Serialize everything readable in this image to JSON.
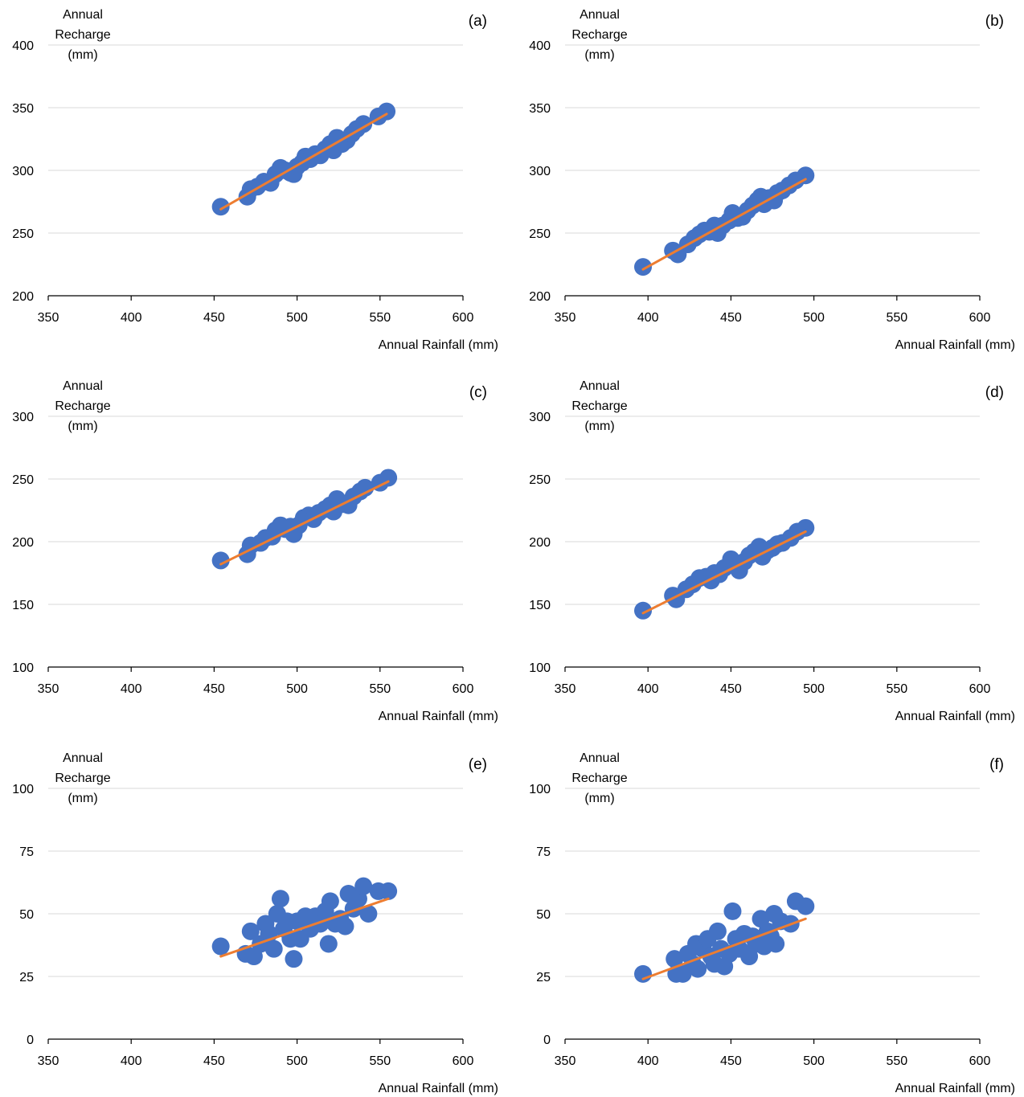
{
  "chart_data": [
    {
      "panel_label": "(a)",
      "type": "scatter",
      "xlabel": "Annual Rainfall (mm)",
      "ylabel_lines": [
        "Annual",
        "Recharge",
        "(mm)"
      ],
      "xlim": [
        350,
        600
      ],
      "ylim": [
        200,
        400
      ],
      "xticks": [
        350,
        400,
        450,
        500,
        550,
        600
      ],
      "yticks": [
        200,
        250,
        300,
        350,
        400
      ],
      "grid": true,
      "points": [
        [
          454,
          271
        ],
        [
          470,
          279
        ],
        [
          472,
          285
        ],
        [
          476,
          287
        ],
        [
          480,
          291
        ],
        [
          484,
          290
        ],
        [
          487,
          297
        ],
        [
          490,
          302
        ],
        [
          493,
          300
        ],
        [
          496,
          298
        ],
        [
          498,
          297
        ],
        [
          500,
          303
        ],
        [
          503,
          306
        ],
        [
          505,
          311
        ],
        [
          508,
          309
        ],
        [
          511,
          313
        ],
        [
          514,
          312
        ],
        [
          517,
          317
        ],
        [
          520,
          321
        ],
        [
          522,
          316
        ],
        [
          524,
          326
        ],
        [
          527,
          321
        ],
        [
          530,
          324
        ],
        [
          533,
          329
        ],
        [
          536,
          333
        ],
        [
          540,
          337
        ],
        [
          549,
          343
        ],
        [
          554,
          347
        ]
      ],
      "trend": [
        [
          454,
          269
        ],
        [
          554,
          345
        ]
      ]
    },
    {
      "panel_label": "(b)",
      "type": "scatter",
      "xlabel": "Annual Rainfall (mm)",
      "ylabel_lines": [
        "Annual",
        "Recharge",
        "(mm)"
      ],
      "xlim": [
        350,
        600
      ],
      "ylim": [
        200,
        400
      ],
      "xticks": [
        350,
        400,
        450,
        500,
        550,
        600
      ],
      "yticks": [
        200,
        250,
        300,
        350,
        400
      ],
      "grid": true,
      "points": [
        [
          397,
          223
        ],
        [
          415,
          236
        ],
        [
          418,
          233
        ],
        [
          424,
          241
        ],
        [
          428,
          246
        ],
        [
          431,
          249
        ],
        [
          434,
          252
        ],
        [
          437,
          251
        ],
        [
          440,
          256
        ],
        [
          442,
          250
        ],
        [
          445,
          256
        ],
        [
          449,
          260
        ],
        [
          451,
          266
        ],
        [
          454,
          262
        ],
        [
          457,
          263
        ],
        [
          460,
          268
        ],
        [
          463,
          272
        ],
        [
          466,
          276
        ],
        [
          468,
          279
        ],
        [
          470,
          273
        ],
        [
          473,
          278
        ],
        [
          476,
          276
        ],
        [
          478,
          282
        ],
        [
          481,
          284
        ],
        [
          485,
          288
        ],
        [
          489,
          292
        ],
        [
          495,
          296
        ]
      ],
      "trend": [
        [
          397,
          221
        ],
        [
          495,
          293
        ]
      ]
    },
    {
      "panel_label": "(c)",
      "type": "scatter",
      "xlabel": "Annual Rainfall (mm)",
      "ylabel_lines": [
        "Annual",
        "Recharge",
        "(mm)"
      ],
      "xlim": [
        350,
        600
      ],
      "ylim": [
        100,
        300
      ],
      "xticks": [
        350,
        400,
        450,
        500,
        550,
        600
      ],
      "yticks": [
        100,
        150,
        200,
        250,
        300
      ],
      "grid": true,
      "points": [
        [
          454,
          185
        ],
        [
          470,
          190
        ],
        [
          472,
          197
        ],
        [
          478,
          199
        ],
        [
          481,
          203
        ],
        [
          485,
          204
        ],
        [
          487,
          209
        ],
        [
          490,
          213
        ],
        [
          493,
          210
        ],
        [
          496,
          212
        ],
        [
          498,
          206
        ],
        [
          501,
          213
        ],
        [
          504,
          219
        ],
        [
          507,
          221
        ],
        [
          510,
          218
        ],
        [
          513,
          223
        ],
        [
          517,
          226
        ],
        [
          520,
          229
        ],
        [
          522,
          224
        ],
        [
          524,
          234
        ],
        [
          528,
          230
        ],
        [
          531,
          229
        ],
        [
          534,
          236
        ],
        [
          538,
          240
        ],
        [
          541,
          243
        ],
        [
          550,
          247
        ],
        [
          555,
          251
        ]
      ],
      "trend": [
        [
          454,
          182
        ],
        [
          555,
          248
        ]
      ]
    },
    {
      "panel_label": "(d)",
      "type": "scatter",
      "xlabel": "Annual Rainfall (mm)",
      "ylabel_lines": [
        "Annual",
        "Recharge",
        "(mm)"
      ],
      "xlim": [
        350,
        600
      ],
      "ylim": [
        100,
        300
      ],
      "xticks": [
        350,
        400,
        450,
        500,
        550,
        600
      ],
      "yticks": [
        100,
        150,
        200,
        250,
        300
      ],
      "grid": true,
      "points": [
        [
          397,
          145
        ],
        [
          415,
          157
        ],
        [
          417,
          154
        ],
        [
          423,
          162
        ],
        [
          427,
          166
        ],
        [
          431,
          171
        ],
        [
          435,
          172
        ],
        [
          438,
          169
        ],
        [
          440,
          175
        ],
        [
          443,
          174
        ],
        [
          446,
          179
        ],
        [
          450,
          186
        ],
        [
          453,
          182
        ],
        [
          455,
          177
        ],
        [
          458,
          184
        ],
        [
          461,
          189
        ],
        [
          464,
          192
        ],
        [
          467,
          196
        ],
        [
          469,
          188
        ],
        [
          472,
          193
        ],
        [
          475,
          195
        ],
        [
          478,
          198
        ],
        [
          481,
          199
        ],
        [
          486,
          203
        ],
        [
          490,
          208
        ],
        [
          495,
          211
        ]
      ],
      "trend": [
        [
          397,
          143
        ],
        [
          495,
          208
        ]
      ]
    },
    {
      "panel_label": "(e)",
      "type": "scatter",
      "xlabel": "Annual Rainfall (mm)",
      "ylabel_lines": [
        "Annual",
        "Recharge",
        "(mm)"
      ],
      "xlim": [
        350,
        600
      ],
      "ylim": [
        0,
        100
      ],
      "xticks": [
        350,
        400,
        450,
        500,
        550,
        600
      ],
      "yticks": [
        0,
        25,
        50,
        75,
        100
      ],
      "grid": true,
      "points": [
        [
          454,
          37
        ],
        [
          469,
          34
        ],
        [
          472,
          43
        ],
        [
          474,
          33
        ],
        [
          478,
          38
        ],
        [
          481,
          46
        ],
        [
          483,
          42
        ],
        [
          486,
          36
        ],
        [
          488,
          50
        ],
        [
          490,
          56
        ],
        [
          492,
          44
        ],
        [
          494,
          47
        ],
        [
          496,
          40
        ],
        [
          498,
          32
        ],
        [
          500,
          47
        ],
        [
          502,
          40
        ],
        [
          505,
          49
        ],
        [
          508,
          44
        ],
        [
          511,
          49
        ],
        [
          514,
          46
        ],
        [
          517,
          51
        ],
        [
          519,
          38
        ],
        [
          520,
          55
        ],
        [
          523,
          46
        ],
        [
          526,
          48
        ],
        [
          529,
          45
        ],
        [
          531,
          58
        ],
        [
          534,
          52
        ],
        [
          537,
          56
        ],
        [
          540,
          61
        ],
        [
          543,
          50
        ],
        [
          549,
          59
        ],
        [
          555,
          59
        ]
      ],
      "trend": [
        [
          454,
          33
        ],
        [
          555,
          56
        ]
      ]
    },
    {
      "panel_label": "(f)",
      "type": "scatter",
      "xlabel": "Annual Rainfall (mm)",
      "ylabel_lines": [
        "Annual",
        "Recharge",
        "(mm)"
      ],
      "xlim": [
        350,
        600
      ],
      "ylim": [
        0,
        100
      ],
      "xticks": [
        350,
        400,
        450,
        500,
        550,
        600
      ],
      "yticks": [
        0,
        25,
        50,
        75,
        100
      ],
      "grid": true,
      "points": [
        [
          397,
          26
        ],
        [
          416,
          32
        ],
        [
          417,
          26
        ],
        [
          421,
          26
        ],
        [
          424,
          34
        ],
        [
          427,
          30
        ],
        [
          429,
          38
        ],
        [
          430,
          28
        ],
        [
          433,
          36
        ],
        [
          436,
          40
        ],
        [
          438,
          33
        ],
        [
          440,
          30
        ],
        [
          442,
          43
        ],
        [
          444,
          36
        ],
        [
          446,
          29
        ],
        [
          449,
          34
        ],
        [
          451,
          51
        ],
        [
          453,
          40
        ],
        [
          455,
          36
        ],
        [
          458,
          42
        ],
        [
          461,
          33
        ],
        [
          463,
          41
        ],
        [
          465,
          38
        ],
        [
          468,
          48
        ],
        [
          470,
          37
        ],
        [
          472,
          43
        ],
        [
          474,
          41
        ],
        [
          476,
          50
        ],
        [
          477,
          38
        ],
        [
          480,
          47
        ],
        [
          486,
          46
        ],
        [
          489,
          55
        ],
        [
          495,
          53
        ]
      ],
      "trend": [
        [
          397,
          24
        ],
        [
          495,
          48
        ]
      ]
    }
  ],
  "colors": {
    "marker": "#4472C4",
    "trend": "#ED7D31",
    "grid": "#D9D9D9",
    "axis": "#000000"
  }
}
